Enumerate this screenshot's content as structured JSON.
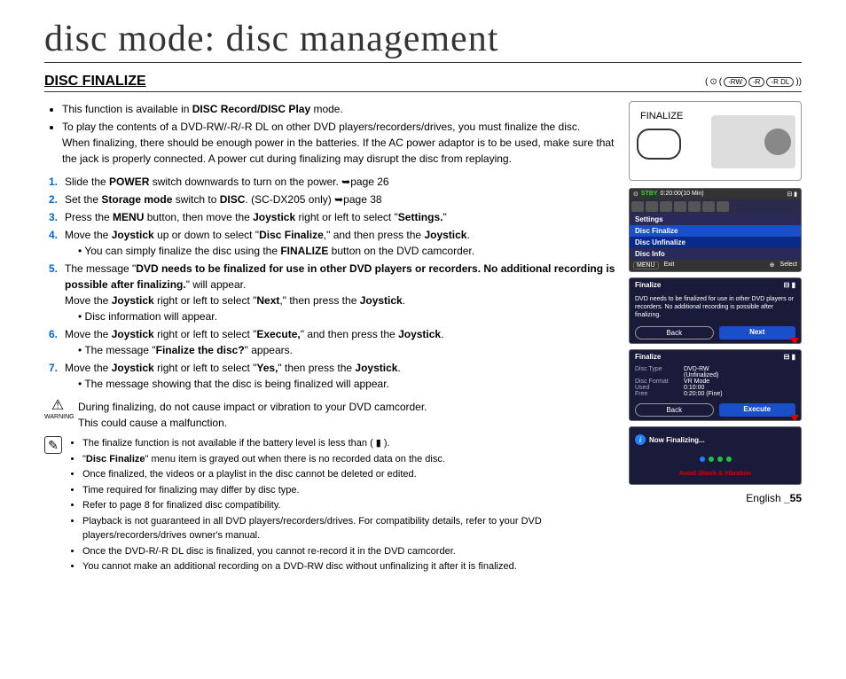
{
  "chapter_title": "disc mode: disc management",
  "section_title": "DISC FINALIZE",
  "disc_types": [
    "-RW",
    "-R",
    "-R DL"
  ],
  "intro": [
    "This function is available in <b>DISC Record/DISC Play</b> mode.",
    "To play the contents of a DVD-RW/-R/-R DL on other DVD players/recorders/drives, you must finalize the disc.<br>When finalizing, there should be enough power in the batteries. If the AC power adaptor is to be used, make sure that the jack is properly connected. A power cut during finalizing may disrupt the disc from replaying."
  ],
  "steps": [
    {
      "n": "1.",
      "t": "Slide the <b>POWER</b> switch downwards to turn on the power. ➥page 26"
    },
    {
      "n": "2.",
      "t": "Set the <b>Storage mode</b> switch to <b>DISC</b>. (SC-DX205 only) ➥page 38"
    },
    {
      "n": "3.",
      "t": "Press the <b>MENU</b> button, then move the <b>Joystick</b> right or left to select \"<b>Settings.</b>\""
    },
    {
      "n": "4.",
      "t": "Move the <b>Joystick</b> up or down to select \"<b>Disc Finalize</b>,\" and then press the <b>Joystick</b>.",
      "subs": [
        "You can simply finalize the disc using the <b>FINALIZE</b> button on the DVD camcorder."
      ]
    },
    {
      "n": "5.",
      "t": "The message \"<b>DVD needs to be finalized for use in other DVD players or recorders. No additional recording is possible after finalizing.</b>\" will appear.<br>Move the <b>Joystick</b> right or left to select \"<b>Next</b>,\" then press the <b>Joystick</b>.",
      "subs": [
        "Disc information will appear."
      ]
    },
    {
      "n": "6.",
      "t": "Move the <b>Joystick</b> right or left to select \"<b>Execute,</b>\" and then press the <b>Joystick</b>.",
      "subs": [
        "The message \"<b>Finalize the disc?</b>\" appears."
      ]
    },
    {
      "n": "7.",
      "t": "Move the <b>Joystick</b> right or left to select \"<b>Yes,</b>\" then press the <b>Joystick</b>.",
      "subs": [
        "The message showing that the disc is being finalized will appear."
      ]
    }
  ],
  "warning_label": "WARNING",
  "warning_text": "During finalizing, do not cause impact or vibration to your DVD camcorder.<br>This could cause a malfunction.",
  "notes": [
    "The finalize function is not available if the battery level is less than ( ▮ ).",
    "\"<b>Disc Finalize</b>\" menu item is grayed out when there is no recorded data on the disc.",
    "Once finalized, the videos or a playlist in the disc cannot be deleted or edited.",
    "Time required for finalizing may differ by disc type.",
    "Refer to page 8 for finalized disc compatibility.",
    "Playback is not guaranteed in all DVD players/recorders/drives. For compatibility details, refer to your DVD players/recorders/drives owner's manual.",
    "Once the DVD-R/-R DL disc is finalized, you cannot re-record it in the DVD camcorder.",
    "You cannot make an additional recording on a DVD-RW disc without unfinalizing it after it is finalized."
  ],
  "camera": {
    "finalize_label": "FINALIZE"
  },
  "screen1": {
    "stby": "STBY",
    "time": "0:20:00(10 Min)",
    "items": {
      "settings": "Settings",
      "finalize": "Disc Finalize",
      "unfinalize": "Disc Unfinalize",
      "info": "Disc Info"
    },
    "footer": {
      "menu": "MENU",
      "exit": "Exit",
      "select": "Select"
    }
  },
  "screen2": {
    "title": "Finalize",
    "msg": "DVD needs to be finalized for use in other DVD players or recorders. No additional recording is possible after finalizing.",
    "back": "Back",
    "next": "Next"
  },
  "screen3": {
    "title": "Finalize",
    "rows": [
      {
        "l": "Disc Type",
        "v": "DVD-RW"
      },
      {
        "l": "",
        "v": "(Unfinalized)"
      },
      {
        "l": "Disc Format",
        "v": "VR Mode"
      },
      {
        "l": "Used",
        "v": "0:10:00"
      },
      {
        "l": "Free",
        "v": "0:20:00 (Fine)"
      }
    ],
    "back": "Back",
    "execute": "Execute"
  },
  "screen4": {
    "now": "Now Finalizing...",
    "avoid": "Avoid Shock & Vibration"
  },
  "footer": {
    "lang": "English ",
    "page": "_55"
  },
  "colors": {
    "accent_blue": "#1a4fcc",
    "step_num": "#0066cc",
    "screen_bg": "#1a1a3a",
    "red": "#d00000"
  }
}
